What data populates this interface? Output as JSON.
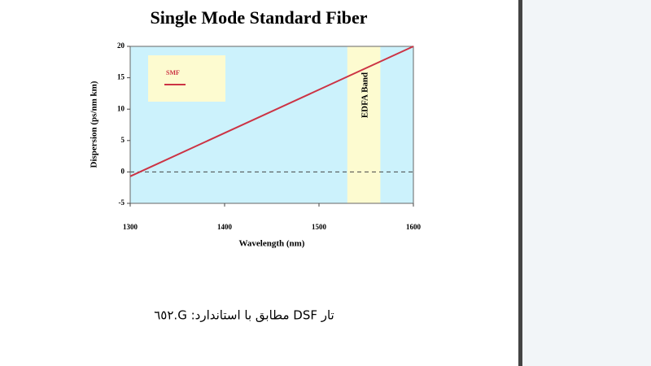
{
  "chart_data": {
    "type": "line",
    "title": "Single Mode Standard Fiber",
    "x_label": "Wavelength (nm)",
    "y_label": "Dispersion (ps/nm km)",
    "x": [
      1300,
      1600
    ],
    "series": [
      {
        "name": "SMF",
        "color": "#cc3344",
        "values": [
          -0.7,
          20
        ]
      }
    ],
    "xlim": [
      1300,
      1600
    ],
    "xticks": [
      1300,
      1400,
      1500,
      1600
    ],
    "ylim": [
      -5,
      20
    ],
    "yticks": [
      -5,
      0,
      5,
      10,
      15,
      20
    ],
    "hline": 0,
    "band": {
      "label": "EDFA Band",
      "range": [
        1530,
        1565
      ]
    },
    "grid": false
  },
  "caption": "تار DSF مطابق با استاندارد: G.٦٥٢"
}
